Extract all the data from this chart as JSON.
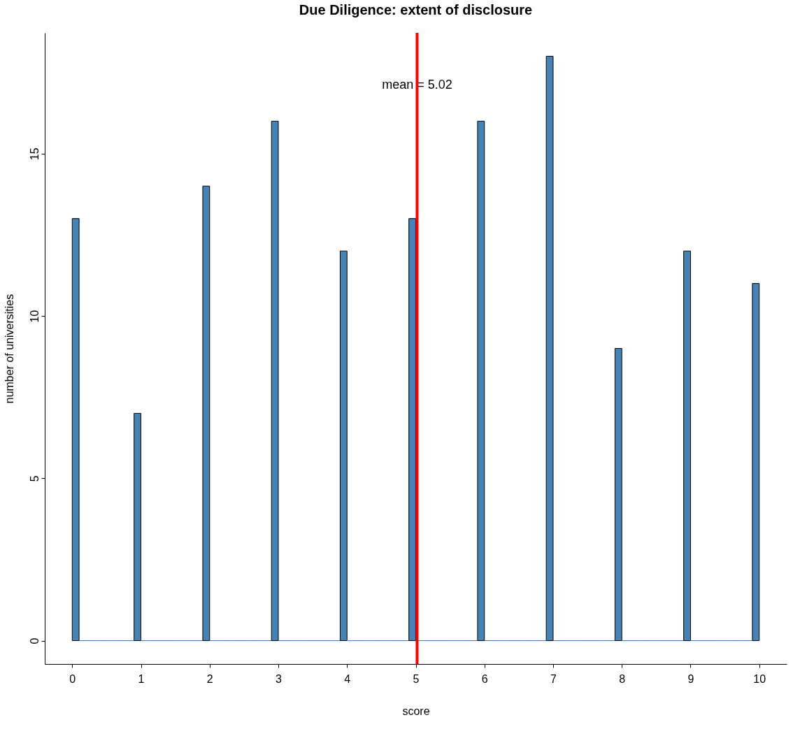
{
  "chart_data": {
    "type": "histogram",
    "title": "Due Diligence: extent of disclosure",
    "xlabel": "score",
    "ylabel": "number of universities",
    "bins": [
      0,
      0.1,
      0.2,
      0.3,
      0.4,
      0.5,
      0.6,
      0.7,
      0.8,
      0.9,
      1,
      1.1,
      1.2,
      1.3,
      1.4,
      1.5,
      1.6,
      1.7,
      1.8,
      1.9,
      2,
      2.1,
      2.2,
      2.3,
      2.4,
      2.5,
      2.6,
      2.7,
      2.8,
      2.9,
      3,
      3.1,
      3.2,
      3.3,
      3.4,
      3.5,
      3.6,
      3.7,
      3.8,
      3.9,
      4,
      4.1,
      4.2,
      4.3,
      4.4,
      4.5,
      4.6,
      4.7,
      4.8,
      4.9,
      5,
      5.1,
      5.2,
      5.3,
      5.4,
      5.5,
      5.6,
      5.7,
      5.8,
      5.9,
      6,
      6.1,
      6.2,
      6.3,
      6.4,
      6.5,
      6.6,
      6.7,
      6.8,
      6.9,
      7,
      7.1,
      7.2,
      7.3,
      7.4,
      7.5,
      7.6,
      7.7,
      7.8,
      7.9,
      8,
      8.1,
      8.2,
      8.3,
      8.4,
      8.5,
      8.6,
      8.7,
      8.8,
      8.9,
      9,
      9.1,
      9.2,
      9.3,
      9.4,
      9.5,
      9.6,
      9.7,
      9.8,
      9.9,
      10
    ],
    "values": [
      13,
      0,
      0,
      0,
      0,
      0,
      0,
      0,
      0,
      7,
      0,
      0,
      0,
      0,
      0,
      0,
      0,
      0,
      0,
      14,
      0,
      0,
      0,
      0,
      0,
      0,
      0,
      0,
      0,
      16,
      0,
      0,
      0,
      0,
      0,
      0,
      0,
      0,
      0,
      12,
      0,
      0,
      0,
      0,
      0,
      0,
      0,
      0,
      0,
      13,
      0,
      0,
      0,
      0,
      0,
      0,
      0,
      0,
      0,
      16,
      0,
      0,
      0,
      0,
      0,
      0,
      0,
      0,
      0,
      18,
      0,
      0,
      0,
      0,
      0,
      0,
      0,
      0,
      0,
      9,
      0,
      0,
      0,
      0,
      0,
      0,
      0,
      0,
      0,
      12,
      0,
      0,
      0,
      0,
      0,
      0,
      0,
      0,
      0,
      11
    ],
    "color": "#4682b4",
    "xlim": [
      -0.4,
      10.4
    ],
    "xticks": [
      0,
      1,
      2,
      3,
      4,
      5,
      6,
      7,
      8,
      9,
      10
    ],
    "ylim": [
      -0.72,
      18.72
    ],
    "yticks": [
      0,
      5,
      10,
      15
    ],
    "ref_lines": [
      {
        "axis": "x",
        "value": 5.02,
        "label": "mean = 5.02",
        "color": "#ff0000"
      }
    ],
    "grid": false,
    "legend": false
  }
}
